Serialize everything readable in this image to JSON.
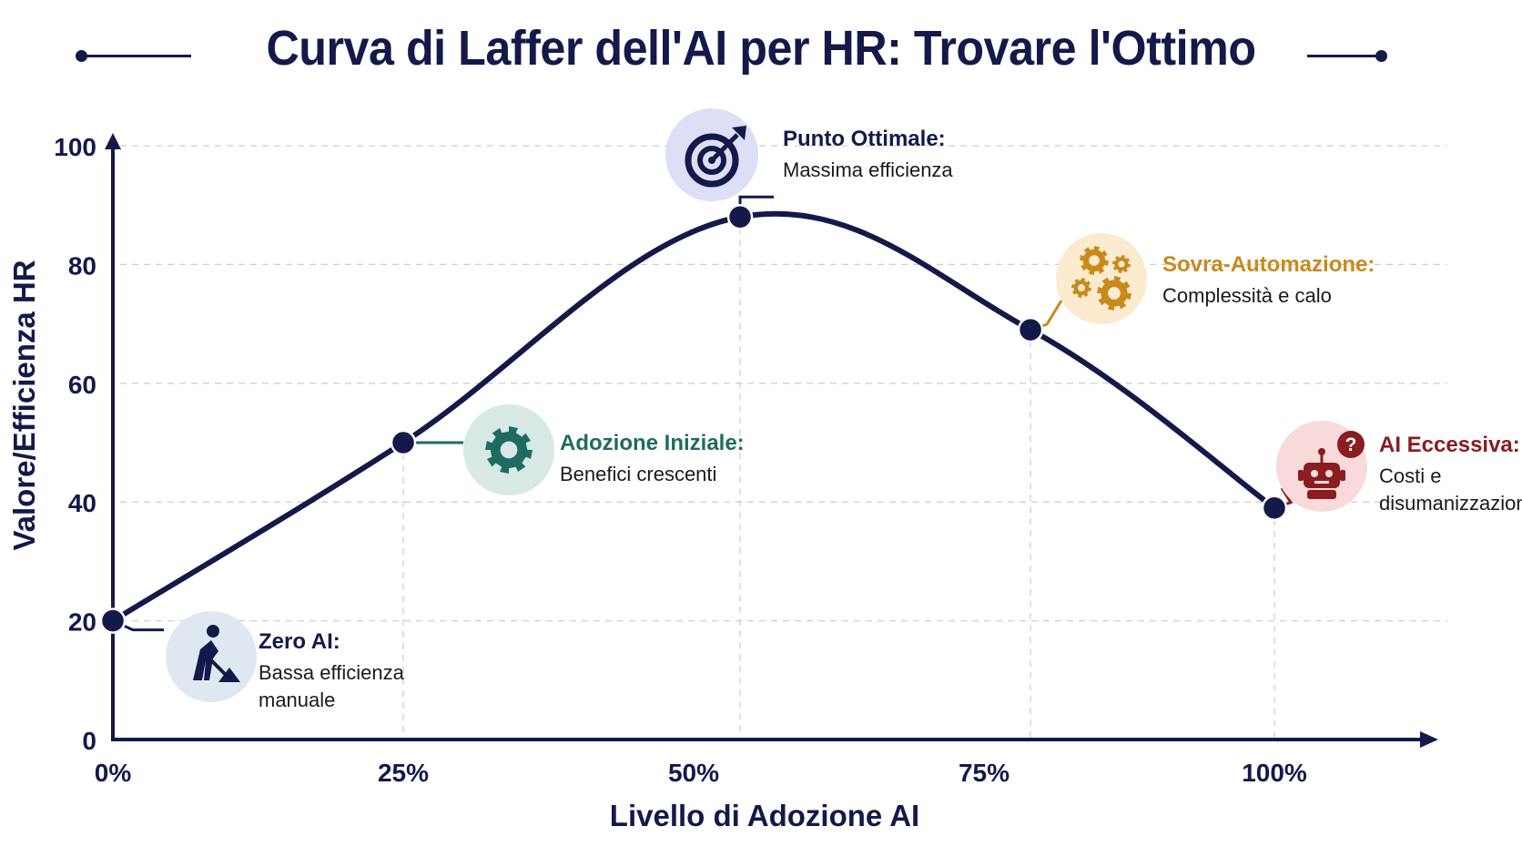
{
  "title": "Curva di Laffer dell'AI per HR: Trovare l'Ottimo",
  "colors": {
    "navy": "#131a4a",
    "teal": "#1f6b62",
    "orange": "#c98a1c",
    "red": "#8a1c22",
    "grid": "#d0d0d0"
  },
  "chart_data": {
    "type": "line",
    "title": "Curva di Laffer dell'AI per HR: Trovare l'Ottimo",
    "xlabel": "Livello di Adozione AI",
    "ylabel": "Valore/Efficienza HR",
    "xlim": [
      0,
      100
    ],
    "ylim": [
      0,
      100
    ],
    "x_ticks": [
      "0%",
      "25%",
      "50%",
      "75%",
      "100%"
    ],
    "y_ticks": [
      "0",
      "20",
      "40",
      "60",
      "80",
      "100"
    ],
    "grid": true,
    "points": [
      {
        "x": 0,
        "y": 20,
        "label": "Zero AI:",
        "description": [
          "Bassa efficienza",
          "manuale"
        ],
        "icon": "worker-shovel-icon",
        "color": "navy"
      },
      {
        "x": 25,
        "y": 50,
        "label": "Adozione Iniziale:",
        "description": [
          "Benefici crescenti"
        ],
        "icon": "gear-icon",
        "color": "teal"
      },
      {
        "x": 54,
        "y": 88,
        "label": "Punto Ottimale:",
        "description": [
          "Massima efficienza"
        ],
        "icon": "target-icon",
        "color": "navy"
      },
      {
        "x": 79,
        "y": 69,
        "label": "Sovra-Automazione:",
        "description": [
          "Complessità e calo"
        ],
        "icon": "gears-icon",
        "color": "orange"
      },
      {
        "x": 100,
        "y": 39,
        "label": "AI Eccessiva:",
        "description": [
          "Costi e",
          "disumanizzazione"
        ],
        "icon": "robot-question-icon",
        "color": "red"
      }
    ]
  }
}
